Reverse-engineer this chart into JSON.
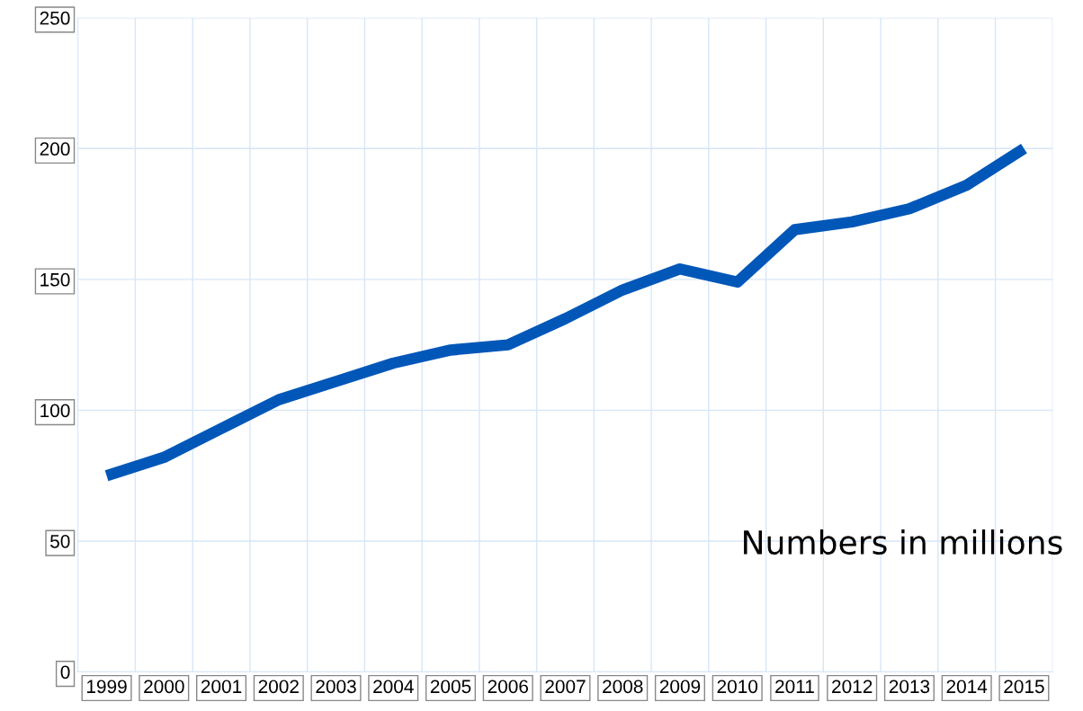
{
  "chart_data": {
    "type": "line",
    "categories": [
      "1999",
      "2000",
      "2001",
      "2002",
      "2003",
      "2004",
      "2005",
      "2006",
      "2007",
      "2008",
      "2009",
      "2010",
      "2011",
      "2012",
      "2013",
      "2014",
      "2015"
    ],
    "series": [
      {
        "color": "#0057b8",
        "values": [
          75,
          82,
          93,
          104,
          111,
          118,
          123,
          125,
          135,
          146,
          154,
          149,
          169,
          172,
          177,
          186,
          200
        ]
      }
    ],
    "ylim": [
      0,
      250
    ],
    "yticks": [
      0,
      50,
      100,
      150,
      200,
      250
    ],
    "grid": true,
    "marker": "none",
    "line_style": "solid",
    "annotations": [
      "Numbers in millions"
    ]
  }
}
